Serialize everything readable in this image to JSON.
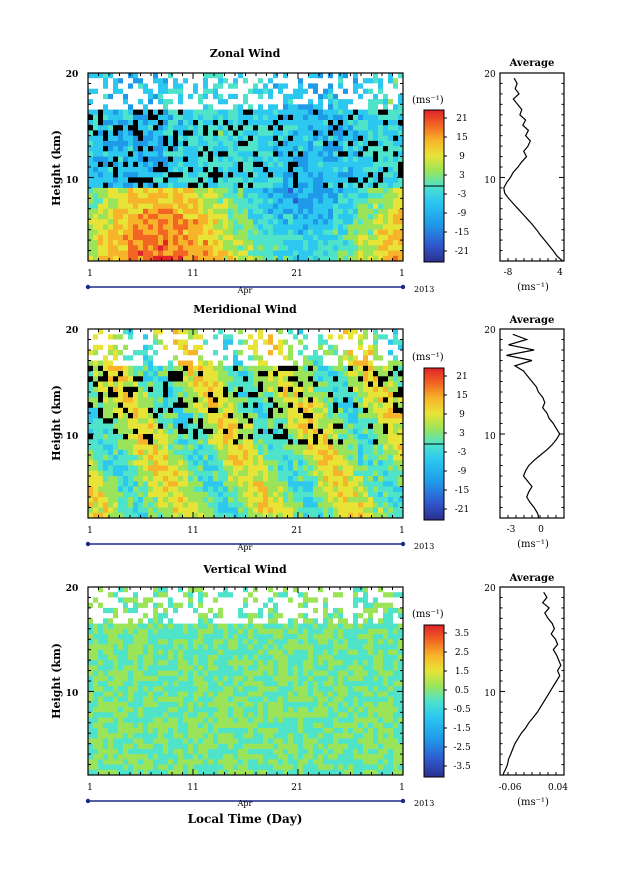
{
  "figure": {
    "xlabel": "Local Time (Day)",
    "month_label": "Apr",
    "year_label": "2013"
  },
  "chart_data": [
    {
      "type": "heatmap",
      "title": "Zonal Wind",
      "ylabel": "Height (km)",
      "ylim": [
        2,
        20
      ],
      "y_ticks": [
        10,
        20
      ],
      "x_ticks": [
        "1",
        "11",
        "21",
        "1"
      ],
      "colorbar": {
        "unit": "(ms⁻¹)",
        "ticks": [
          "21",
          "15",
          "9",
          "3",
          "-3",
          "-9",
          "-15",
          "-21"
        ]
      },
      "profile": {
        "title": "Average",
        "xlabel": "(ms⁻¹)",
        "x_ticks": [
          "-8",
          "4"
        ],
        "xlim": [
          -9,
          4.5
        ],
        "y_ticks": [
          10,
          20
        ],
        "x": [
          -6.0,
          -5.4,
          -5.8,
          -5.0,
          -6.2,
          -5.3,
          -4.4,
          -4.8,
          -3.6,
          -4.2,
          -3.0,
          -3.6,
          -2.6,
          -3.1,
          -4.0,
          -3.4,
          -4.4,
          -5.2,
          -6.2,
          -6.8,
          -7.6,
          -8.2,
          -8.0,
          -7.2,
          -6.2,
          -5.2,
          -4.2,
          -3.2,
          -2.2,
          -1.3,
          -0.5,
          0.4,
          1.3,
          2.2,
          3.0,
          3.7,
          4.2
        ],
        "y": [
          19.5,
          19.0,
          18.5,
          18.0,
          17.5,
          17.0,
          16.5,
          16.0,
          15.5,
          15.0,
          14.5,
          14.0,
          13.5,
          13.0,
          12.5,
          12.0,
          11.5,
          11.0,
          10.5,
          10.0,
          9.5,
          9.0,
          8.5,
          8.0,
          7.5,
          7.0,
          6.5,
          6.0,
          5.5,
          5.0,
          4.5,
          4.0,
          3.5,
          3.0,
          2.5,
          2.2,
          2.0
        ]
      }
    },
    {
      "type": "heatmap",
      "title": "Meridional Wind",
      "ylabel": "Height (km)",
      "ylim": [
        2,
        20
      ],
      "y_ticks": [
        10,
        20
      ],
      "x_ticks": [
        "1",
        "11",
        "21",
        "1"
      ],
      "colorbar": {
        "unit": "(ms⁻¹)",
        "ticks": [
          "21",
          "15",
          "9",
          "3",
          "-3",
          "-9",
          "-15",
          "-21"
        ]
      },
      "profile": {
        "title": "Average",
        "xlabel": "(ms⁻¹)",
        "x_ticks": [
          "-3",
          "0"
        ],
        "xlim": [
          -4,
          2
        ],
        "y_ticks": [
          10,
          20
        ],
        "x": [
          -2.8,
          -1.5,
          -3.2,
          -0.8,
          -3.4,
          -1.0,
          -2.6,
          -1.8,
          -1.4,
          -1.0,
          -0.6,
          -0.4,
          0.0,
          0.2,
          0.0,
          0.4,
          0.6,
          1.0,
          1.3,
          1.6,
          1.3,
          0.9,
          0.4,
          -0.2,
          -0.8,
          -1.3,
          -1.6,
          -1.8,
          -1.4,
          -1.0,
          -1.3,
          -1.5,
          -1.2,
          -0.8,
          -0.5,
          -0.4,
          -0.4
        ],
        "y": [
          19.5,
          19.0,
          18.5,
          18.0,
          17.5,
          17.0,
          16.5,
          16.0,
          15.5,
          15.0,
          14.5,
          14.0,
          13.5,
          13.0,
          12.5,
          12.0,
          11.5,
          11.0,
          10.5,
          10.0,
          9.5,
          9.0,
          8.5,
          8.0,
          7.5,
          7.0,
          6.5,
          6.0,
          5.5,
          5.0,
          4.5,
          4.0,
          3.5,
          3.0,
          2.5,
          2.2,
          2.0
        ]
      }
    },
    {
      "type": "heatmap",
      "title": "Vertical Wind",
      "ylabel": "Height (km)",
      "ylim": [
        2,
        20
      ],
      "y_ticks": [
        10,
        20
      ],
      "x_ticks": [
        "1",
        "11",
        "21",
        "1"
      ],
      "colorbar": {
        "unit": "(ms⁻¹)",
        "ticks": [
          "3.5",
          "2.5",
          "1.5",
          "0.5",
          "-0.5",
          "-1.5",
          "-2.5",
          "-3.5"
        ]
      },
      "profile": {
        "title": "Average",
        "xlabel": "(ms⁻¹)",
        "x_ticks": [
          "-0.06",
          "0.04"
        ],
        "xlim": [
          -0.07,
          0.05
        ],
        "y_ticks": [
          10,
          20
        ],
        "x": [
          0.012,
          0.018,
          0.01,
          0.022,
          0.014,
          0.02,
          0.028,
          0.032,
          0.026,
          0.034,
          0.038,
          0.03,
          0.036,
          0.04,
          0.044,
          0.038,
          0.042,
          0.036,
          0.03,
          0.024,
          0.018,
          0.012,
          0.006,
          0.0,
          -0.008,
          -0.016,
          -0.022,
          -0.03,
          -0.036,
          -0.042,
          -0.046,
          -0.05,
          -0.054,
          -0.056,
          -0.06,
          -0.063,
          -0.064
        ],
        "y": [
          19.5,
          19.0,
          18.5,
          18.0,
          17.5,
          17.0,
          16.5,
          16.0,
          15.5,
          15.0,
          14.5,
          14.0,
          13.5,
          13.0,
          12.5,
          12.0,
          11.5,
          11.0,
          10.5,
          10.0,
          9.5,
          9.0,
          8.5,
          8.0,
          7.5,
          7.0,
          6.5,
          6.0,
          5.5,
          5.0,
          4.5,
          4.0,
          3.5,
          3.0,
          2.5,
          2.2,
          2.0
        ]
      }
    }
  ]
}
